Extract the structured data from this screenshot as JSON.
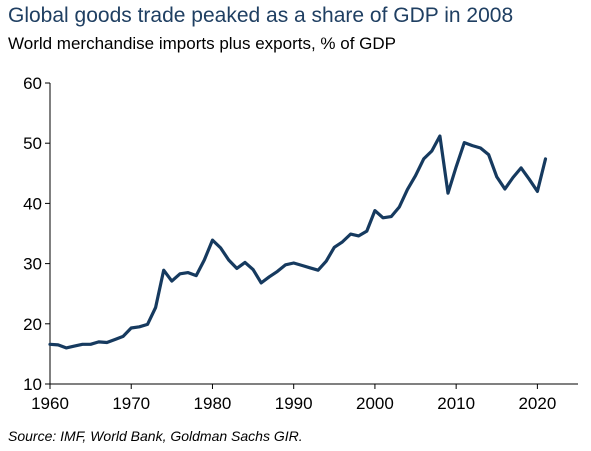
{
  "title": "Global goods trade peaked as a share of GDP in 2008",
  "subtitle": "World merchandise imports plus exports, % of GDP",
  "source": "Source: IMF, World Bank, Goldman Sachs GIR.",
  "colors": {
    "line": "#163a5f",
    "title": "#1f3f62"
  },
  "chart_data": {
    "type": "line",
    "xlim": [
      1960,
      2025
    ],
    "ylim": [
      10,
      60
    ],
    "xticks": [
      1960,
      1970,
      1980,
      1990,
      2000,
      2010,
      2020
    ],
    "yticks": [
      10,
      20,
      30,
      40,
      50,
      60
    ],
    "grid": false,
    "series": [
      {
        "x": [
          1960,
          1961,
          1962,
          1963,
          1964,
          1965,
          1966,
          1967,
          1968,
          1969,
          1970,
          1971,
          1972,
          1973,
          1974,
          1975,
          1976,
          1977,
          1978,
          1979,
          1980,
          1981,
          1982,
          1983,
          1984,
          1985,
          1986,
          1987,
          1988,
          1989,
          1990,
          1991,
          1992,
          1993,
          1994,
          1995,
          1996,
          1997,
          1998,
          1999,
          2000,
          2001,
          2002,
          2003,
          2004,
          2005,
          2006,
          2007,
          2008,
          2009,
          2010,
          2011,
          2012,
          2013,
          2014,
          2015,
          2016,
          2017,
          2018,
          2019,
          2020,
          2021
        ],
        "values": [
          16.6,
          16.5,
          16.0,
          16.3,
          16.6,
          16.6,
          17.0,
          16.9,
          17.4,
          17.9,
          19.3,
          19.5,
          19.9,
          22.7,
          28.9,
          27.1,
          28.3,
          28.5,
          28.0,
          30.6,
          33.9,
          32.6,
          30.6,
          29.2,
          30.2,
          29.0,
          26.8,
          27.8,
          28.7,
          29.8,
          30.1,
          29.7,
          29.3,
          28.9,
          30.4,
          32.7,
          33.6,
          34.9,
          34.6,
          35.4,
          38.8,
          37.6,
          37.8,
          39.4,
          42.3,
          44.6,
          47.4,
          48.7,
          51.2,
          41.7,
          46.1,
          50.1,
          49.6,
          49.2,
          48.1,
          44.4,
          42.4,
          44.3,
          45.9,
          44.0,
          42.0,
          47.4
        ]
      }
    ]
  }
}
